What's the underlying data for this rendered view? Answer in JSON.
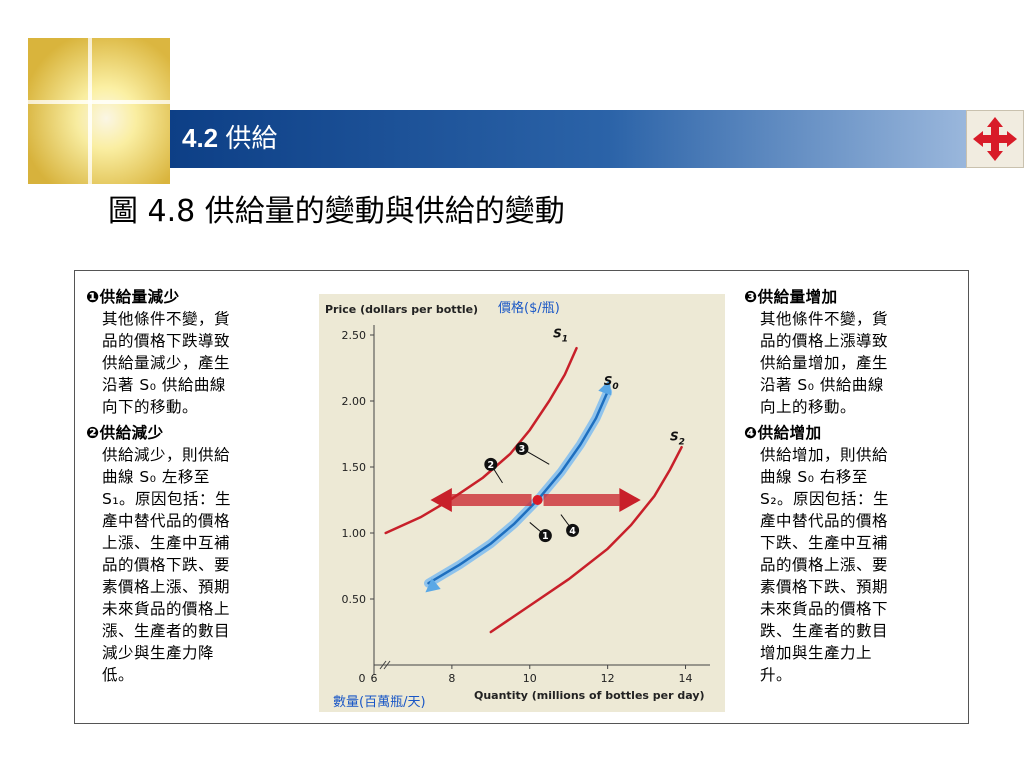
{
  "header": {
    "section_number": "4.2",
    "section_title": "供給",
    "figure_title": "圖 4.8 供給量的變動與供給的變動"
  },
  "left_panel": [
    {
      "heading": "❶供給量減少",
      "body": "其他條件不變，貨\n品的價格下跌導致\n供給量減少，產生\n沿著 S₀ 供給曲線\n向下的移動。"
    },
    {
      "heading": "❷供給減少",
      "body": "供給減少，則供給\n曲線 S₀ 左移至\nS₁。原因包括：生\n產中替代品的價格\n上漲、生產中互補\n品的價格下跌、要\n素價格上漲、預期\n未來貨品的價格上\n漲、生產者的數目\n減少與生產力降\n低。"
    }
  ],
  "right_panel": [
    {
      "heading": "❸供給量增加",
      "body": "其他條件不變，貨\n品的價格上漲導致\n供給量增加，產生\n沿著 S₀ 供給曲線\n向上的移動。"
    },
    {
      "heading": "❹供給增加",
      "body": "供給增加，則供給\n曲線 S₀ 右移至\nS₂。原因包括：生\n產中替代品的價格\n下跌、生產中互補\n品的價格上漲、要\n素價格下跌、預期\n未來貨品的價格下\n跌、生產者的數目\n增加與生產力上\n升。"
    }
  ],
  "chart_data": {
    "type": "line",
    "ylabel": "Price (dollars per bottle)",
    "ylabel_cn": "價格($/瓶)",
    "xlabel": "Quantity (millions of bottles per day)",
    "xlabel_cn": "數量(百萬瓶/天)",
    "x_ticks": [
      "0",
      "6",
      "8",
      "10",
      "12",
      "14"
    ],
    "y_ticks": [
      "0.50",
      "1.00",
      "1.50",
      "2.00",
      "2.50"
    ],
    "xlim": [
      6,
      14.5
    ],
    "ylim": [
      0,
      2.5
    ],
    "series": [
      {
        "name": "S1",
        "color": "#c8202a",
        "x": [
          6.3,
          7.2,
          8.0,
          8.8,
          9.5,
          10.0,
          10.5,
          10.9,
          11.2
        ],
        "y": [
          1.0,
          1.12,
          1.26,
          1.42,
          1.6,
          1.78,
          2.0,
          2.2,
          2.4
        ]
      },
      {
        "name": "S0",
        "color": "#1e6fbf",
        "x": [
          7.4,
          8.2,
          9.0,
          9.6,
          10.2,
          10.8,
          11.3,
          11.7,
          12.0
        ],
        "y": [
          0.62,
          0.76,
          0.92,
          1.07,
          1.25,
          1.46,
          1.67,
          1.87,
          2.07
        ]
      },
      {
        "name": "S2",
        "color": "#c8202a",
        "x": [
          9.0,
          10.0,
          11.0,
          12.0,
          12.6,
          13.2,
          13.6,
          13.9
        ],
        "y": [
          0.25,
          0.45,
          0.65,
          0.88,
          1.06,
          1.28,
          1.48,
          1.65
        ]
      }
    ],
    "curve_labels": [
      {
        "label": "S",
        "sub": "1",
        "x": 10.6,
        "y": 2.48
      },
      {
        "label": "S",
        "sub": "0",
        "x": 11.9,
        "y": 2.12
      },
      {
        "label": "S",
        "sub": "2",
        "x": 13.6,
        "y": 1.7
      }
    ],
    "point": {
      "x": 10.2,
      "y": 1.25
    },
    "markers": [
      {
        "label": "1",
        "x": 10.4,
        "y": 0.98,
        "lx": 10.0,
        "ly": 1.08
      },
      {
        "label": "2",
        "x": 9.0,
        "y": 1.52,
        "lx": 9.3,
        "ly": 1.38
      },
      {
        "label": "3",
        "x": 9.8,
        "y": 1.64,
        "lx": 10.5,
        "ly": 1.52
      },
      {
        "label": "4",
        "x": 11.1,
        "y": 1.02,
        "lx": 10.8,
        "ly": 1.14
      }
    ]
  },
  "colors": {
    "curve": "#c8202a",
    "s0": "#1e6fbf",
    "point": "#d81b28",
    "title_bar": "#0d3f86"
  },
  "icons": {
    "logo": "gold-tile-logo-icon",
    "nav": "four-arrow-move-icon"
  }
}
